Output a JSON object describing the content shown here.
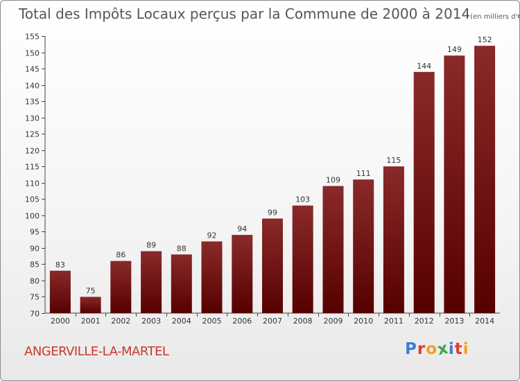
{
  "title": "Total des Impôts Locaux perçus par la Commune de 2000 à 2014",
  "title_unit": "(en milliers d'€)",
  "commune": "ANGERVILLE-LA-MARTEL",
  "brand": {
    "letters": [
      "P",
      "r",
      "o",
      "x",
      "i",
      "t",
      "i"
    ],
    "colors": [
      "#3d7fd0",
      "#e23b2f",
      "#f3a21d",
      "#3fa845",
      "#3d7fd0",
      "#e23b2f",
      "#f3a21d"
    ]
  },
  "colors": {
    "bar_light": "#8a2a2a",
    "bar_dark": "#560000",
    "axis": "#444444",
    "grid": "#d8d8d8"
  },
  "chart_data": {
    "type": "bar",
    "categories": [
      "2000",
      "2001",
      "2002",
      "2003",
      "2004",
      "2005",
      "2006",
      "2007",
      "2008",
      "2009",
      "2010",
      "2011",
      "2012",
      "2013",
      "2014"
    ],
    "values": [
      83,
      75,
      86,
      89,
      88,
      92,
      94,
      99,
      103,
      109,
      111,
      115,
      144,
      149,
      152
    ],
    "ylim": [
      70,
      155
    ],
    "yticks": [
      70,
      75,
      80,
      85,
      90,
      95,
      100,
      105,
      110,
      115,
      120,
      125,
      130,
      135,
      140,
      145,
      150,
      155
    ],
    "grid": false,
    "data_labels": true
  }
}
